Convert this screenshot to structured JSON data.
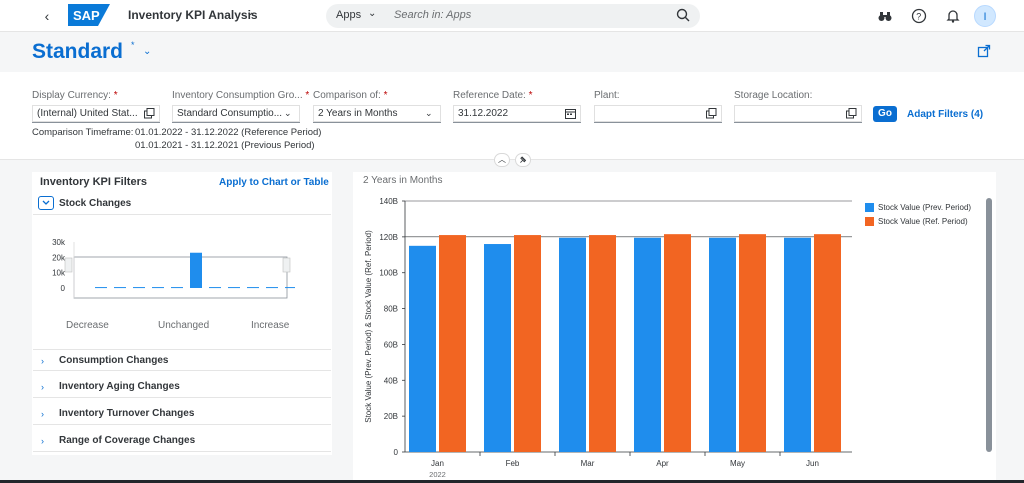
{
  "shell": {
    "back_icon": "back-arrow-icon",
    "app_title": "Inventory KPI Analysis",
    "search_scope": "Apps",
    "search_placeholder": "Search in: Apps",
    "avatar_initial": "I"
  },
  "header": {
    "variant_name": "Standard",
    "variant_star": "*"
  },
  "filters": [
    {
      "label": "Display Currency:",
      "required": true,
      "value": "(Internal) United Stat...",
      "icon": "value-help-icon"
    },
    {
      "label": "Inventory Consumption Gro...",
      "required": true,
      "value": "Standard Consumptio...",
      "icon": "chevron-down-icon"
    },
    {
      "label": "Comparison of:",
      "required": true,
      "value": "2 Years in Months",
      "icon": "chevron-down-icon"
    },
    {
      "label": "Reference Date:",
      "required": true,
      "value": "31.12.2022",
      "icon": "calendar-icon"
    },
    {
      "label": "Plant:",
      "required": false,
      "value": "",
      "icon": "value-help-icon"
    },
    {
      "label": "Storage Location:",
      "required": false,
      "value": "",
      "icon": "value-help-icon"
    }
  ],
  "go_label": "Go",
  "adapt_label": "Adapt Filters (4)",
  "timeframe": {
    "label": "Comparison Timeframe:",
    "line1": "01.01.2022 - 31.12.2022 (Reference Period)",
    "line2": "01.01.2021 - 31.12.2021 (Previous Period)"
  },
  "left_panel": {
    "title": "Inventory KPI Filters",
    "apply_label": "Apply to Chart or Table",
    "sections": [
      "Stock Changes",
      "Consumption Changes",
      "Inventory Aging Changes",
      "Inventory Turnover Changes",
      "Range of Coverage Changes"
    ],
    "mini_chart": {
      "y_ticks": [
        "30k",
        "20k",
        "10k",
        "0"
      ],
      "values": [
        0.6,
        0.6,
        0.6,
        0.6,
        0.6,
        23,
        0.6,
        0.6,
        0.6,
        0.6,
        0.6,
        0.6
      ],
      "x_labels": [
        "Decrease",
        "Unchanged",
        "Increase"
      ]
    }
  },
  "chart_data": {
    "type": "bar",
    "title": "2 Years in Months",
    "ylabel": "Stock Value (Prev. Period) & Stock Value (Ref. Period)",
    "xlabel": "",
    "categories": [
      "Jan",
      "Feb",
      "Mar",
      "Apr",
      "May",
      "Jun"
    ],
    "category_sublabels": [
      "2022",
      "",
      "",
      "",
      "",
      ""
    ],
    "ylim": [
      0,
      140
    ],
    "y_ticks": [
      "0",
      "20B",
      "40B",
      "60B",
      "80B",
      "100B",
      "120B",
      "140B"
    ],
    "series": [
      {
        "name": "Stock Value (Prev. Period)",
        "color": "#1f8ded",
        "values": [
          115,
          116,
          119.5,
          119.5,
          119.5,
          119.5
        ]
      },
      {
        "name": "Stock Value (Ref. Period)",
        "color": "#f26522",
        "values": [
          121,
          121,
          121,
          121.5,
          121.5,
          121.5
        ]
      }
    ],
    "legend_position": "right",
    "grid": false
  }
}
